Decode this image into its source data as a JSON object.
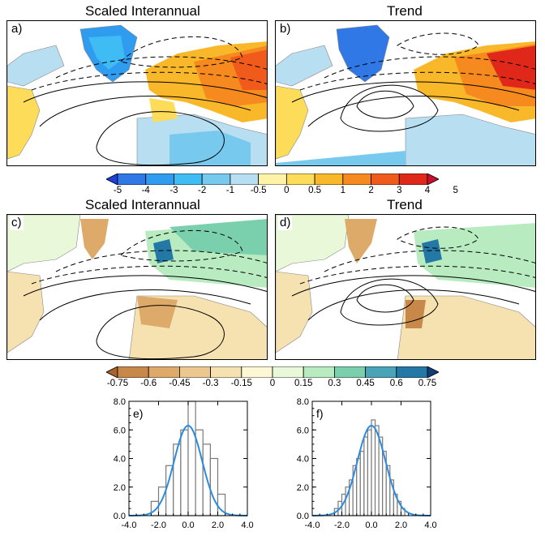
{
  "titles": {
    "a": "Scaled Interannual",
    "b": "Trend",
    "c": "Scaled Interannual",
    "d": "Trend"
  },
  "panel_labels": [
    "a)",
    "b)",
    "c)",
    "d)",
    "e)",
    "f)"
  ],
  "colorbar_temp": {
    "ticks": [
      "-5",
      "-4",
      "-3",
      "-2",
      "-1",
      "-0.5",
      "0",
      "0.5",
      "1",
      "2",
      "3",
      "4",
      "5"
    ],
    "colors": [
      "#1f3fd8",
      "#2f78e6",
      "#2f9cf0",
      "#3fbcf4",
      "#78c9ee",
      "#b8def2",
      "#fff3a8",
      "#fddc5a",
      "#f9b82a",
      "#f78a1e",
      "#f05a1a",
      "#e0281a",
      "#c8102a"
    ]
  },
  "colorbar_precip": {
    "ticks": [
      "-0.75",
      "-0.6",
      "-0.45",
      "-0.3",
      "-0.15",
      "0",
      "0.15",
      "0.3",
      "0.45",
      "0.6",
      "0.75"
    ],
    "colors": [
      "#a8642e",
      "#c8884a",
      "#ddaa6a",
      "#ecc890",
      "#f6e2b0",
      "#fdf7d6",
      "#e8f8d8",
      "#b8ecc0",
      "#7ad0ac",
      "#4aa4b8",
      "#2478a6",
      "#0f3e78"
    ]
  },
  "chart_data": [
    {
      "type": "bar",
      "panel": "e)",
      "bin_edges": [
        -3.0,
        -2.5,
        -2.0,
        -1.5,
        -1.0,
        -0.5,
        0.0,
        0.5,
        1.0,
        1.5,
        2.0,
        2.5,
        3.0
      ],
      "values": [
        0,
        1,
        2,
        3.5,
        5,
        6,
        8,
        6,
        5,
        4,
        1.5,
        0
      ],
      "fit_curve": {
        "type": "gaussian",
        "mean": 0.0,
        "std": 0.95,
        "peak": 6.3
      },
      "xlim": [
        -4.0,
        4.0
      ],
      "ylim": [
        0.0,
        8.0
      ],
      "xticks": [
        "-4.0",
        "-2.0",
        "0.0",
        "2.0",
        "4.0"
      ],
      "yticks": [
        "0.0",
        "2.0",
        "4.0",
        "6.0",
        "8.0"
      ]
    },
    {
      "type": "bar",
      "panel": "f)",
      "bin_edges": [
        -2.5,
        -2.25,
        -2.0,
        -1.75,
        -1.5,
        -1.25,
        -1.0,
        -0.75,
        -0.5,
        -0.25,
        0.0,
        0.25,
        0.5,
        0.75,
        1.0,
        1.25,
        1.5,
        1.75,
        2.0,
        2.25
      ],
      "values": [
        0.5,
        1.0,
        1.5,
        2.0,
        2.5,
        3.5,
        4.0,
        4.5,
        5.5,
        6.0,
        6.7,
        6.3,
        5.5,
        4.5,
        3.5,
        2.5,
        1.5,
        1.0,
        0.5
      ],
      "fit_curve": {
        "type": "gaussian",
        "mean": 0.0,
        "std": 0.95,
        "peak": 6.3
      },
      "xlim": [
        -4.0,
        4.0
      ],
      "ylim": [
        0.0,
        8.0
      ],
      "xticks": [
        "-4.0",
        "-2.0",
        "0.0",
        "2.0",
        "4.0"
      ],
      "yticks": [
        "0.0",
        "2.0",
        "4.0",
        "6.0",
        "8.0"
      ]
    }
  ]
}
